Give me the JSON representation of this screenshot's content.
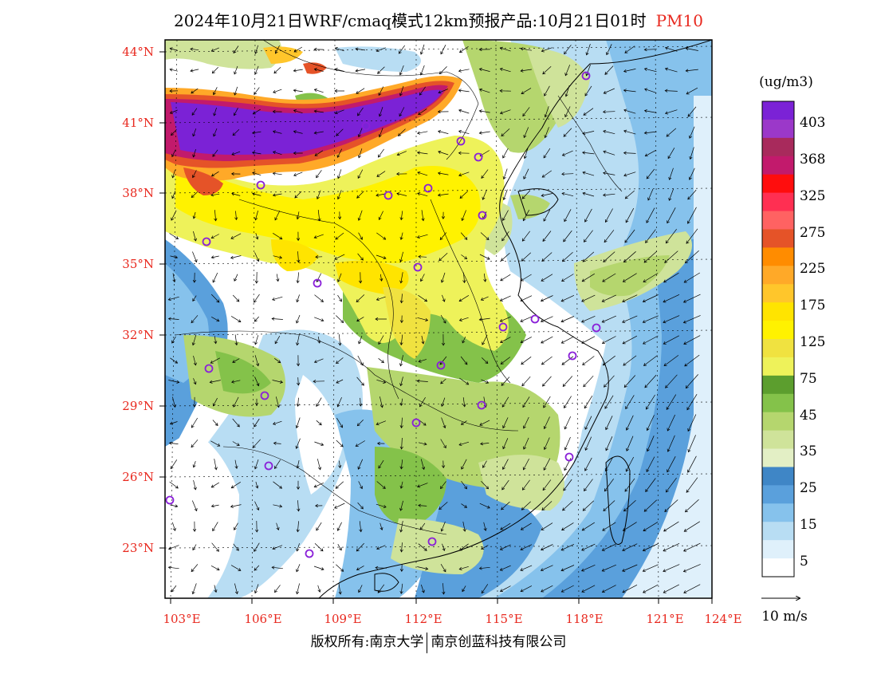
{
  "title": {
    "main": "2024年10月21日WRF/cmaq模式12km预报产品:10月21日01时",
    "variable": "PM10"
  },
  "map": {
    "lat_labels": [
      "44°N",
      "41°N",
      "38°N",
      "35°N",
      "32°N",
      "29°N",
      "26°N",
      "23°N"
    ],
    "lon_labels": [
      "103°E",
      "106°E",
      "109°E",
      "112°E",
      "115°E",
      "118°E",
      "121°E",
      "124°E"
    ],
    "label_color": "#e8281e",
    "frame_color": "#000000"
  },
  "legend": {
    "unit": "(ug/m3)",
    "labels": [
      "403",
      "368",
      "325",
      "275",
      "225",
      "175",
      "125",
      "75",
      "45",
      "35",
      "25",
      "15",
      "5"
    ],
    "colors": [
      "#7b22d6",
      "#9b38c9",
      "#a82a5c",
      "#c21a6c",
      "#ff0d0d",
      "#ff2f52",
      "#ff6262",
      "#e55328",
      "#ff8c00",
      "#ffa928",
      "#ffc62b",
      "#ffe400",
      "#fff200",
      "#f0e240",
      "#eef25a",
      "#5c9e2e",
      "#84c24a",
      "#b5d66e",
      "#cfe39a",
      "#e3efc5",
      "#3f86c6",
      "#5aa0dc",
      "#86c2ec",
      "#b8ddf3",
      "#dff0fb",
      "#ffffff"
    ]
  },
  "wind_scale": {
    "label": "10 m/s"
  },
  "footer": {
    "copyright": "版权所有:南京大学",
    "company": "南京创蓝科技有限公司"
  }
}
